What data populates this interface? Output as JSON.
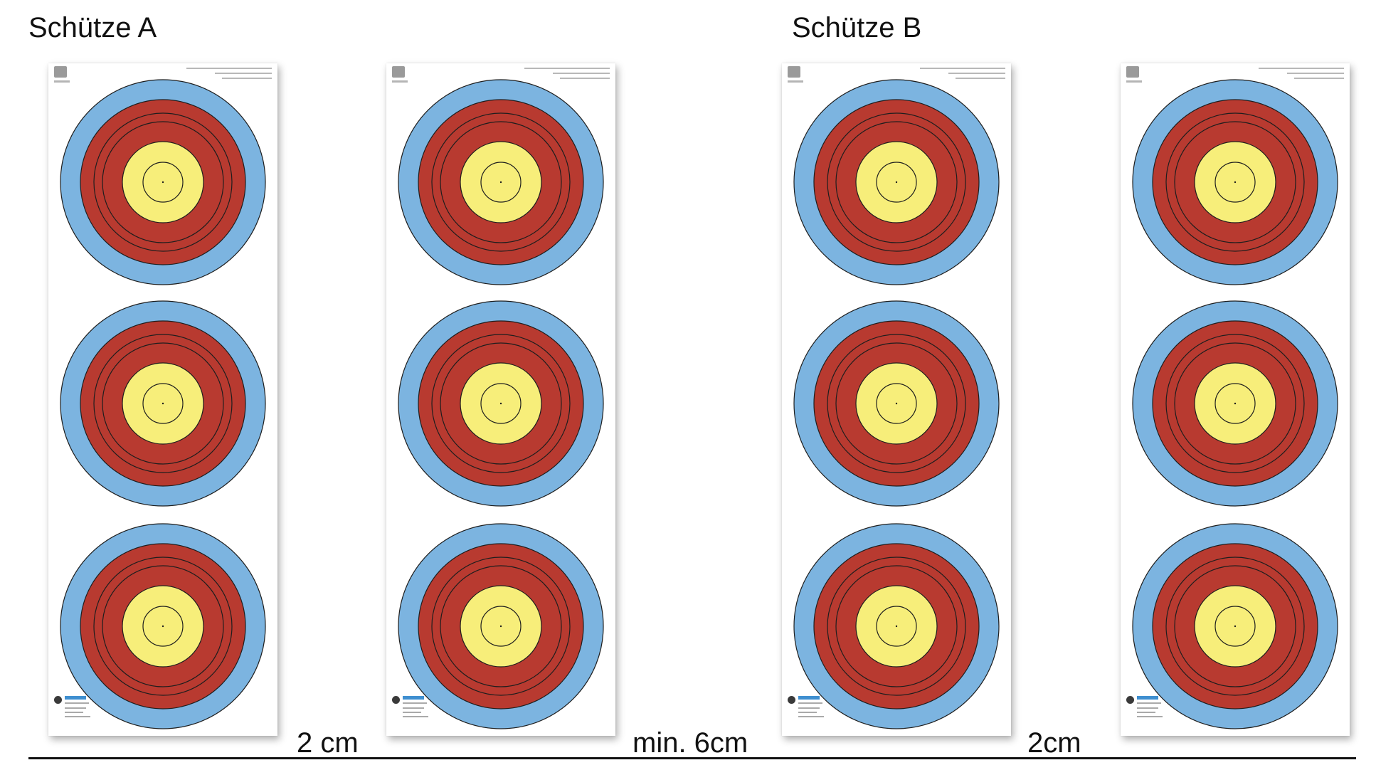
{
  "shooters": {
    "a_label": "Schütze A",
    "b_label": "Schütze B"
  },
  "spacing": {
    "between_a_sheets": "2 cm",
    "between_shooters": "min. 6cm",
    "between_b_sheets": "2cm"
  },
  "target": {
    "sheets": 4,
    "faces_per_sheet": 3,
    "colors": {
      "outer_ring": "#7cb4e0",
      "red_zone": "#b83a30",
      "gold_zone": "#f7ee7a",
      "ring_lines": "#1e1e1e"
    }
  }
}
